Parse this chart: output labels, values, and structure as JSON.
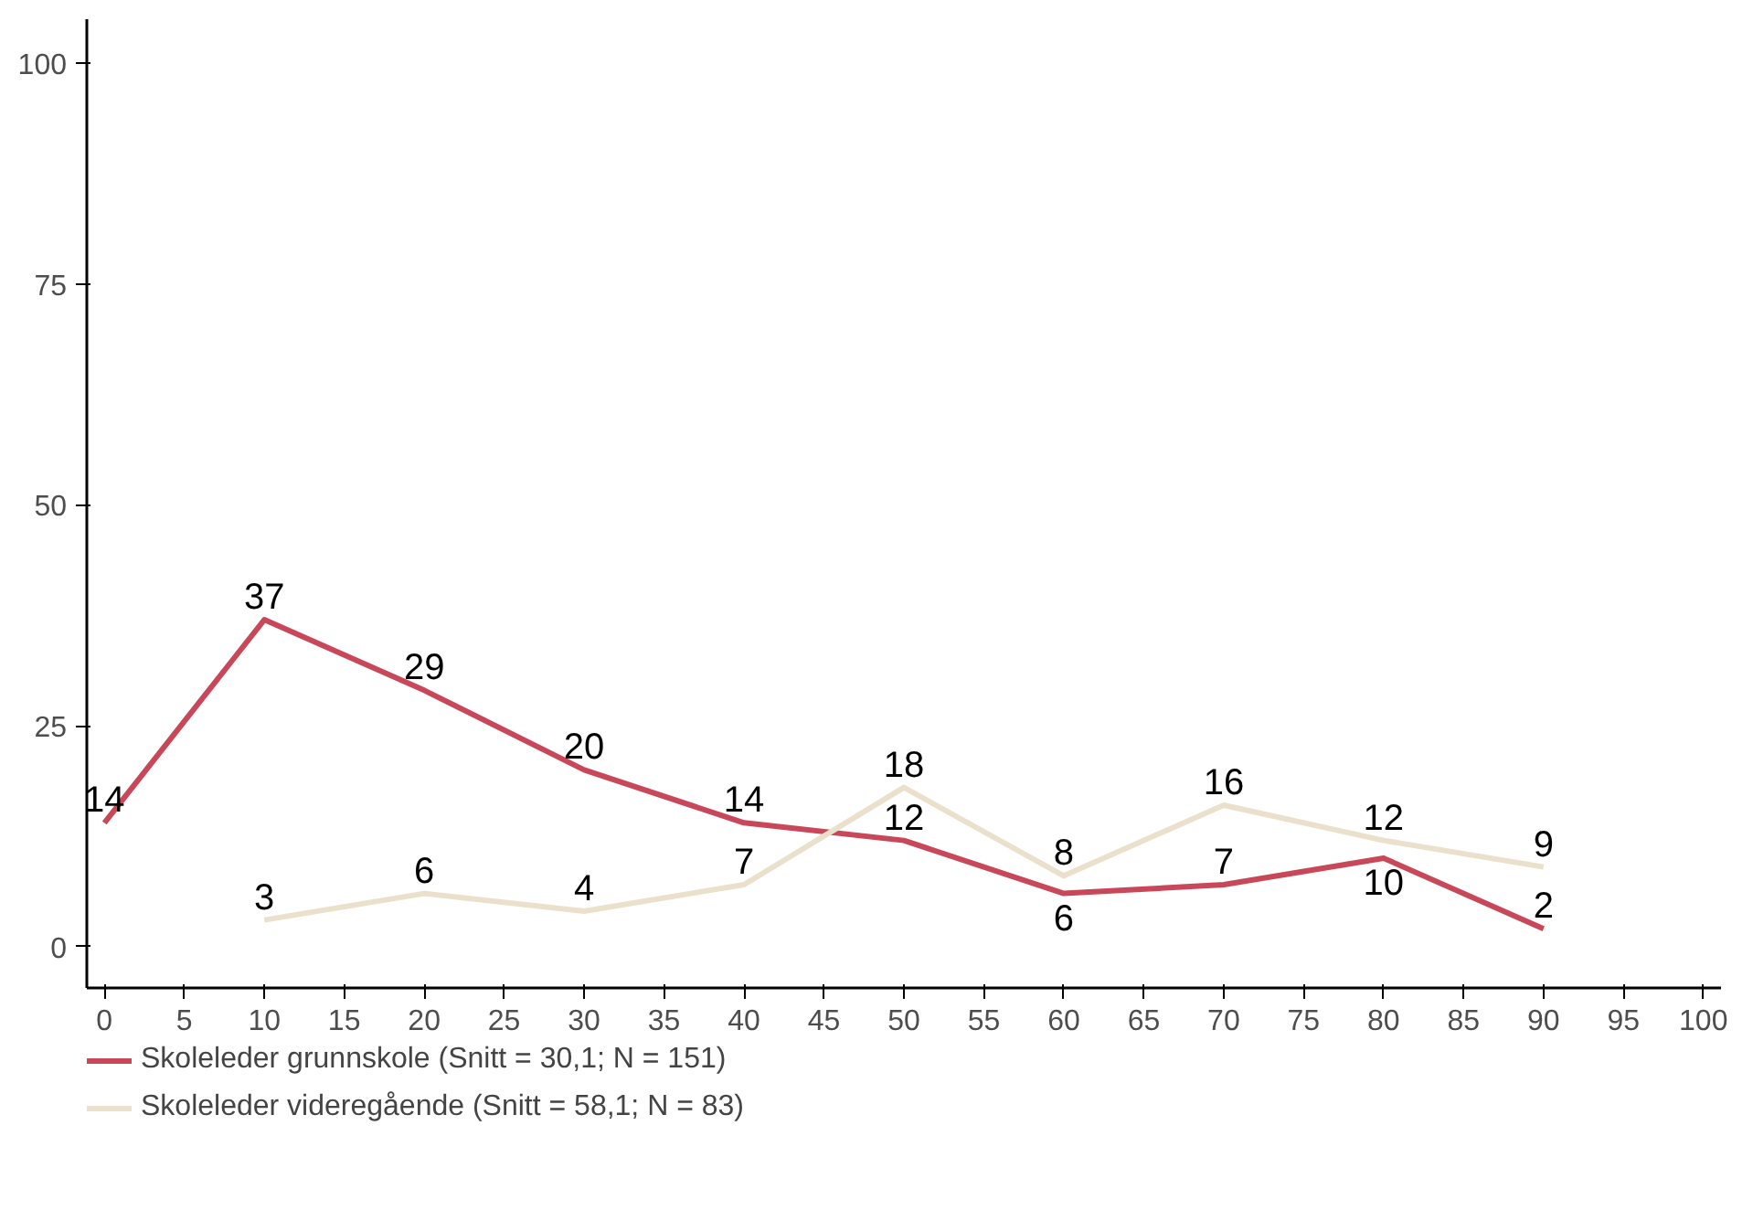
{
  "chart_data": {
    "type": "line",
    "x": [
      0,
      10,
      20,
      30,
      40,
      50,
      60,
      70,
      80,
      90
    ],
    "series": [
      {
        "name": "Skoleleder grunnskole (Snitt = 30,1; N = 151)",
        "color": "#c8485a",
        "values": [
          14,
          37,
          29,
          20,
          14,
          12,
          6,
          7,
          10,
          2
        ]
      },
      {
        "name": "Skoleleder videregående (Snitt = 58,1; N = 83)",
        "color": "#ebe0cc",
        "values": [
          null,
          3,
          6,
          4,
          7,
          18,
          8,
          16,
          12,
          9
        ]
      }
    ],
    "xlim": [
      -1.1,
      101.1
    ],
    "xticks": [
      0,
      5,
      10,
      15,
      20,
      25,
      30,
      35,
      40,
      45,
      50,
      55,
      60,
      65,
      70,
      75,
      80,
      85,
      90,
      95,
      100
    ],
    "ylim": [
      -4.7,
      105
    ],
    "yticks": [
      0,
      25,
      50,
      75,
      100
    ],
    "grid": false,
    "legend": "bottom",
    "data_labels": true,
    "marker": "none",
    "line_style": "solid"
  }
}
